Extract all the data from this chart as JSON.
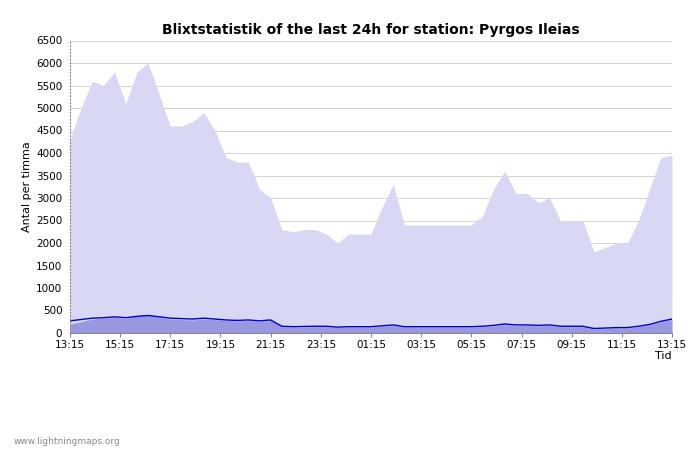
{
  "title": "Blixtstatistik of the last 24h for station: Pyrgos Ileias",
  "ylabel": "Antal per timma",
  "xlabel": "Tid",
  "watermark": "www.lightningmaps.org",
  "ylim": [
    0,
    6500
  ],
  "xtick_labels": [
    "13:15",
    "15:15",
    "17:15",
    "19:15",
    "21:15",
    "23:15",
    "01:15",
    "03:15",
    "05:15",
    "07:15",
    "09:15",
    "11:15",
    "13:15"
  ],
  "ytick_values": [
    0,
    500,
    1000,
    1500,
    2000,
    2500,
    3000,
    3500,
    4000,
    4500,
    5000,
    5500,
    6000,
    6500
  ],
  "total_color": "#d8d8f4",
  "detected_color": "#9898e0",
  "mean_color": "#0000cc",
  "background_color": "#ffffff",
  "grid_color": "#cccccc",
  "title_fontsize": 10,
  "axis_fontsize": 8,
  "tick_fontsize": 7.5,
  "total_values": [
    4300,
    5000,
    5600,
    5500,
    5800,
    5100,
    5800,
    6000,
    5300,
    4600,
    4600,
    4700,
    4900,
    4500,
    3900,
    3800,
    3800,
    3200,
    3000,
    2300,
    2250,
    2300,
    2300,
    2200,
    2000,
    2200,
    2200,
    2200,
    2800,
    3300,
    2400,
    2400,
    2400,
    2400,
    2400,
    2400,
    2400,
    2600,
    3200,
    3600,
    3100,
    3100,
    2900,
    3000,
    2500,
    2500,
    2500,
    1800,
    1900,
    2000,
    2000,
    2500,
    3200,
    3900,
    3950
  ],
  "detected_values": [
    200,
    250,
    310,
    330,
    350,
    320,
    380,
    410,
    350,
    310,
    300,
    290,
    310,
    300,
    280,
    270,
    280,
    260,
    280,
    140,
    130,
    130,
    140,
    140,
    120,
    130,
    130,
    130,
    150,
    170,
    130,
    130,
    130,
    130,
    130,
    130,
    130,
    140,
    160,
    190,
    170,
    170,
    160,
    170,
    140,
    140,
    140,
    90,
    100,
    110,
    110,
    140,
    180,
    250,
    300
  ],
  "mean_values": [
    270,
    300,
    330,
    340,
    360,
    340,
    370,
    390,
    360,
    330,
    320,
    310,
    330,
    310,
    290,
    280,
    290,
    270,
    290,
    150,
    140,
    145,
    150,
    150,
    130,
    140,
    140,
    140,
    160,
    180,
    140,
    140,
    140,
    140,
    140,
    140,
    140,
    150,
    170,
    200,
    180,
    180,
    170,
    180,
    150,
    150,
    150,
    100,
    110,
    120,
    120,
    150,
    190,
    260,
    310
  ]
}
